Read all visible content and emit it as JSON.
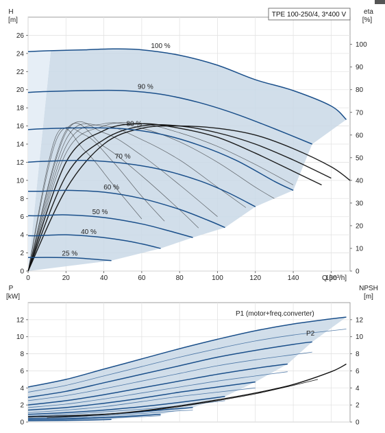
{
  "chart_data": [
    {
      "type": "line",
      "title": "TPE 100-250/4, 3*400 V",
      "xlabel": "Q [m³/h]",
      "ylabel_top": "H",
      "ylabel_unit": "[m]",
      "y2label_top": "eta",
      "y2label_unit": "[%]",
      "xlim": [
        0,
        170
      ],
      "ylim": [
        0,
        28
      ],
      "y2lim": [
        0,
        112
      ],
      "x_ticks": [
        "0",
        "20",
        "40",
        "60",
        "80",
        "100",
        "120",
        "140",
        "160"
      ],
      "y_ticks": [
        "0",
        "2",
        "4",
        "6",
        "8",
        "10",
        "12",
        "14",
        "16",
        "18",
        "20",
        "22",
        "24",
        "26"
      ],
      "y2_ticks": [
        "0",
        "10",
        "20",
        "30",
        "40",
        "50",
        "60",
        "70",
        "80",
        "90",
        "100"
      ],
      "grid": true,
      "colors": {
        "curve": "#1a4f8a",
        "envelope_fill": "#c9d8e6",
        "envelope_light": "#e6eef6",
        "eta": "#111111"
      },
      "series": [
        {
          "name": "100 %",
          "x": [
            0,
            12,
            30,
            45,
            60,
            80,
            100,
            120,
            140,
            160,
            168
          ],
          "y": [
            24.2,
            24.3,
            24.4,
            24.5,
            24.4,
            23.8,
            22.7,
            21.1,
            19.9,
            18.2,
            16.7
          ]
        },
        {
          "name": "90 %",
          "x": [
            0,
            10,
            30,
            50,
            70,
            90,
            110,
            130,
            150
          ],
          "y": [
            19.7,
            19.8,
            19.9,
            19.9,
            19.5,
            18.6,
            17.3,
            15.7,
            14.0
          ]
        },
        {
          "name": "80 %",
          "x": [
            0,
            9,
            30,
            50,
            70,
            90,
            110,
            130,
            140
          ],
          "y": [
            15.6,
            15.7,
            15.8,
            15.7,
            15.1,
            13.9,
            12.2,
            9.9,
            8.9
          ]
        },
        {
          "name": "70 %",
          "x": [
            0,
            8,
            30,
            50,
            70,
            90,
            105,
            120
          ],
          "y": [
            12.0,
            12.1,
            12.2,
            11.9,
            11.2,
            10.0,
            8.7,
            7.1
          ]
        },
        {
          "name": "60 %",
          "x": [
            0,
            7,
            20,
            40,
            60,
            80,
            95,
            104
          ],
          "y": [
            8.8,
            8.8,
            8.9,
            8.7,
            8.0,
            6.8,
            5.6,
            4.8
          ]
        },
        {
          "name": "50 %",
          "x": [
            0,
            6,
            20,
            40,
            60,
            75,
            87
          ],
          "y": [
            6.1,
            6.1,
            6.2,
            5.9,
            5.2,
            4.4,
            3.7
          ]
        },
        {
          "name": "40 %",
          "x": [
            0,
            5,
            20,
            35,
            50,
            60,
            70
          ],
          "y": [
            3.9,
            3.9,
            4.0,
            3.8,
            3.4,
            3.0,
            2.5
          ]
        },
        {
          "name": "25 %",
          "x": [
            0,
            3,
            15,
            25,
            35,
            44
          ],
          "y": [
            1.5,
            1.5,
            1.5,
            1.45,
            1.3,
            1.15
          ]
        }
      ],
      "eta_series": [
        {
          "x": [
            0,
            20,
            40,
            60,
            80,
            100,
            120,
            140,
            160,
            170
          ],
          "y": [
            0,
            36,
            56,
            63,
            64,
            63,
            60,
            54,
            46,
            40
          ]
        },
        {
          "x": [
            0,
            20,
            40,
            60,
            80,
            100,
            120,
            140,
            160
          ],
          "y": [
            0,
            42,
            58,
            64,
            64,
            61,
            56,
            49,
            41
          ]
        },
        {
          "x": [
            0,
            20,
            40,
            60,
            80,
            100,
            120,
            140,
            155
          ],
          "y": [
            0,
            48,
            62,
            65,
            63,
            59,
            52,
            44,
            38
          ]
        },
        {
          "x": [
            0,
            20,
            40,
            60,
            80,
            100,
            120,
            140
          ],
          "y": [
            0,
            52,
            64,
            65,
            61,
            55,
            47,
            38
          ]
        },
        {
          "x": [
            0,
            20,
            40,
            60,
            80,
            100,
            120,
            130
          ],
          "y": [
            0,
            55,
            65,
            63,
            57,
            48,
            37,
            32
          ]
        },
        {
          "x": [
            0,
            20,
            40,
            60,
            80,
            100,
            115
          ],
          "y": [
            0,
            58,
            64,
            58,
            49,
            37,
            28
          ]
        },
        {
          "x": [
            0,
            20,
            40,
            60,
            80,
            100
          ],
          "y": [
            0,
            61,
            61,
            51,
            38,
            24
          ]
        },
        {
          "x": [
            0,
            20,
            40,
            60,
            80,
            90
          ],
          "y": [
            0,
            62,
            55,
            42,
            27,
            19
          ]
        },
        {
          "x": [
            0,
            15,
            30,
            45,
            60,
            72
          ],
          "y": [
            0,
            58,
            60,
            48,
            33,
            22
          ]
        },
        {
          "x": [
            0,
            15,
            30,
            45,
            60
          ],
          "y": [
            0,
            60,
            53,
            38,
            23
          ]
        }
      ],
      "annotations": [
        "100 %",
        "90 %",
        "80 %",
        "70 %",
        "60 %",
        "50 %",
        "40 %",
        "25 %"
      ]
    },
    {
      "type": "line",
      "ylabel_top": "P",
      "ylabel_unit": "[kW]",
      "y2label_top": "NPSH",
      "y2label_unit": "[m]",
      "xlim": [
        0,
        170
      ],
      "ylim": [
        0,
        14
      ],
      "y2lim": [
        0,
        14
      ],
      "y_ticks": [
        "0",
        "2",
        "4",
        "6",
        "8",
        "10",
        "12"
      ],
      "y2_ticks": [
        "0",
        "2",
        "4",
        "6",
        "8",
        "10",
        "12"
      ],
      "grid": true,
      "legend": [
        "P1 (motor+freq.converter)",
        "P2"
      ],
      "p1_series": [
        {
          "x": [
            0,
            20,
            40,
            60,
            80,
            100,
            120,
            140,
            160,
            168
          ],
          "y": [
            4.1,
            5.0,
            6.2,
            7.4,
            8.6,
            9.7,
            10.7,
            11.5,
            12.1,
            12.3
          ]
        },
        {
          "x": [
            0,
            20,
            40,
            60,
            80,
            100,
            120,
            140,
            150
          ],
          "y": [
            2.9,
            3.6,
            4.6,
            5.6,
            6.6,
            7.6,
            8.4,
            9.1,
            9.4
          ]
        },
        {
          "x": [
            0,
            20,
            40,
            60,
            80,
            100,
            120,
            137
          ],
          "y": [
            2.0,
            2.5,
            3.2,
            4.0,
            4.8,
            5.6,
            6.3,
            6.8
          ]
        },
        {
          "x": [
            0,
            20,
            40,
            60,
            80,
            100,
            120
          ],
          "y": [
            1.4,
            1.7,
            2.2,
            2.8,
            3.5,
            4.1,
            4.7
          ]
        },
        {
          "x": [
            0,
            20,
            40,
            60,
            80,
            104
          ],
          "y": [
            0.9,
            1.1,
            1.4,
            1.8,
            2.3,
            3.0
          ]
        },
        {
          "x": [
            0,
            20,
            40,
            60,
            75,
            87
          ],
          "y": [
            0.6,
            0.7,
            0.9,
            1.2,
            1.5,
            1.7
          ]
        },
        {
          "x": [
            0,
            20,
            40,
            55,
            70
          ],
          "y": [
            0.35,
            0.4,
            0.55,
            0.7,
            0.9
          ]
        },
        {
          "x": [
            0,
            15,
            30,
            44
          ],
          "y": [
            0.15,
            0.18,
            0.22,
            0.3
          ]
        }
      ],
      "p2_series": [
        {
          "x": [
            0,
            20,
            40,
            60,
            80,
            100,
            120,
            140,
            160,
            168
          ],
          "y": [
            3.5,
            4.3,
            5.4,
            6.5,
            7.6,
            8.6,
            9.5,
            10.2,
            10.7,
            10.9
          ]
        },
        {
          "x": [
            0,
            20,
            40,
            60,
            80,
            100,
            120,
            140,
            150
          ],
          "y": [
            2.5,
            3.1,
            3.9,
            4.8,
            5.7,
            6.6,
            7.3,
            7.9,
            8.2
          ]
        },
        {
          "x": [
            0,
            20,
            40,
            60,
            80,
            100,
            120,
            137
          ],
          "y": [
            1.7,
            2.1,
            2.7,
            3.4,
            4.1,
            4.8,
            5.4,
            5.9
          ]
        },
        {
          "x": [
            0,
            20,
            40,
            60,
            80,
            100,
            120
          ],
          "y": [
            1.1,
            1.4,
            1.8,
            2.4,
            3.0,
            3.5,
            4.0
          ]
        },
        {
          "x": [
            0,
            20,
            40,
            60,
            80,
            104
          ],
          "y": [
            0.7,
            0.9,
            1.2,
            1.5,
            1.9,
            2.5
          ]
        },
        {
          "x": [
            0,
            20,
            40,
            60,
            75,
            87
          ],
          "y": [
            0.45,
            0.55,
            0.75,
            1.0,
            1.25,
            1.4
          ]
        },
        {
          "x": [
            0,
            20,
            40,
            55,
            70
          ],
          "y": [
            0.25,
            0.3,
            0.45,
            0.58,
            0.75
          ]
        }
      ],
      "npsh_series": [
        {
          "x": [
            0,
            40,
            60,
            80,
            100,
            120,
            140,
            160,
            168
          ],
          "y": [
            0.6,
            0.9,
            1.3,
            1.9,
            2.6,
            3.4,
            4.4,
            5.9,
            6.8
          ]
        },
        {
          "x": [
            10,
            40,
            60,
            80,
            100,
            120,
            140,
            153
          ],
          "y": [
            0.5,
            0.85,
            1.25,
            1.8,
            2.5,
            3.3,
            4.3,
            5.0
          ]
        }
      ]
    }
  ]
}
